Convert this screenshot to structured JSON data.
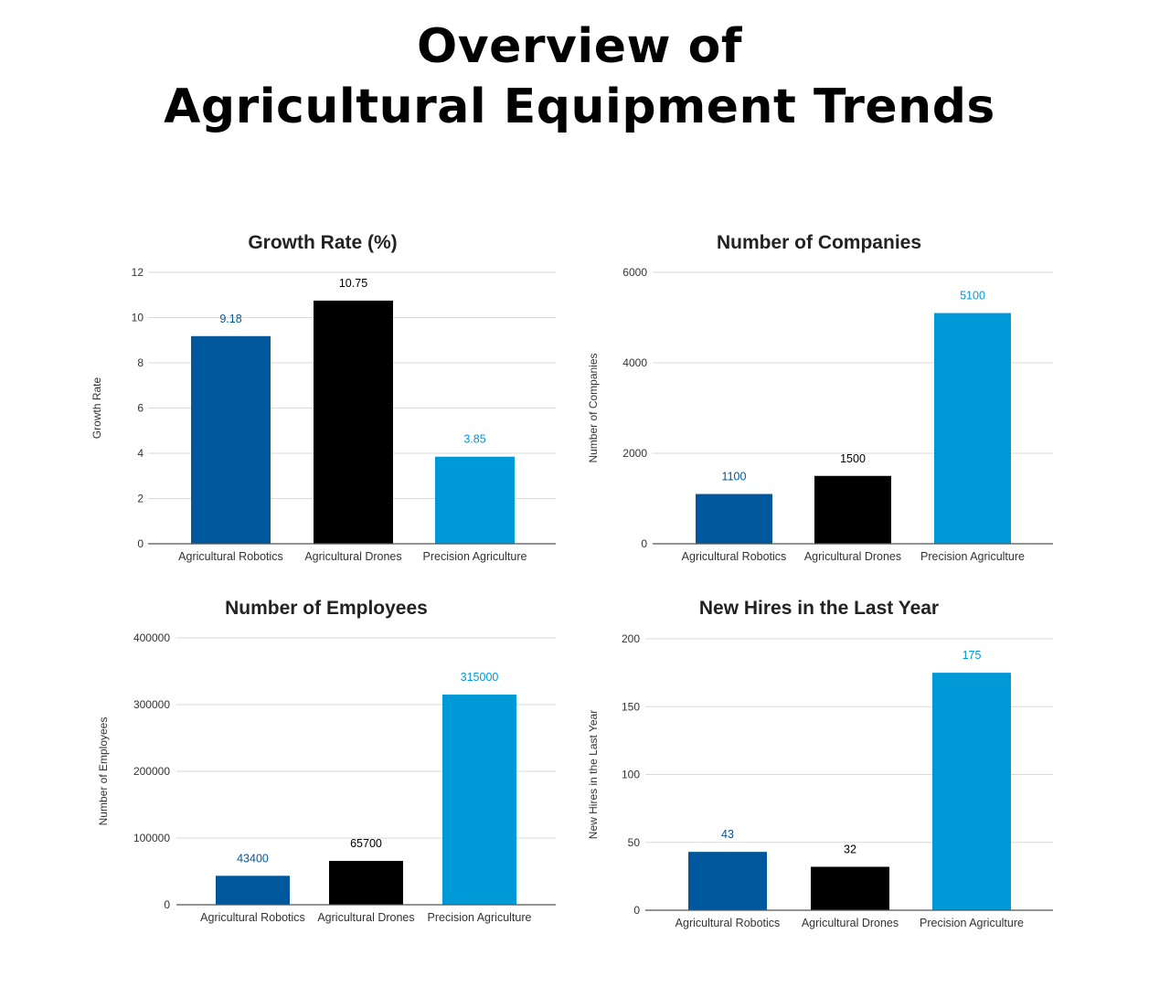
{
  "title_line1": "Overview of",
  "title_line2": "Agricultural Equipment Trends",
  "colors": {
    "Agricultural Robotics": "#01579b",
    "Agricultural Drones": "#000000",
    "Precision Agriculture": "#0099d8",
    "grid": "#d9d9d9",
    "axis": "#555555"
  },
  "chart_data": [
    {
      "type": "bar",
      "title": "Growth Rate (%)",
      "ylabel": "Growth Rate",
      "xlabel": "",
      "categories": [
        "Agricultural Robotics",
        "Agricultural Drones",
        "Precision Agriculture"
      ],
      "values": [
        9.18,
        10.75,
        3.85
      ],
      "labels": [
        "9.18",
        "10.75",
        "3.85"
      ],
      "ylim": [
        0,
        12
      ],
      "yticks": [
        0,
        2,
        4,
        6,
        8,
        10,
        12
      ],
      "grid": true
    },
    {
      "type": "bar",
      "title": "Number of Companies",
      "ylabel": "Number of Companies",
      "xlabel": "",
      "categories": [
        "Agricultural Robotics",
        "Agricultural Drones",
        "Precision Agriculture"
      ],
      "values": [
        1100,
        1500,
        5100
      ],
      "labels": [
        "1100",
        "1500",
        "5100"
      ],
      "ylim": [
        0,
        6000
      ],
      "yticks": [
        0,
        2000,
        4000,
        6000
      ],
      "grid": true
    },
    {
      "type": "bar",
      "title": "Number of Employees",
      "ylabel": "Number of Employees",
      "xlabel": "",
      "categories": [
        "Agricultural Robotics",
        "Agricultural Drones",
        "Precision Agriculture"
      ],
      "values": [
        43400,
        65700,
        315000
      ],
      "labels": [
        "43400",
        "65700",
        "315000"
      ],
      "ylim": [
        0,
        400000
      ],
      "yticks": [
        0,
        100000,
        200000,
        300000,
        400000
      ],
      "grid": true
    },
    {
      "type": "bar",
      "title": "New Hires in the Last Year",
      "ylabel": "New Hires in the Last Year",
      "xlabel": "",
      "categories": [
        "Agricultural Robotics",
        "Agricultural Drones",
        "Precision Agriculture"
      ],
      "values": [
        43,
        32,
        175
      ],
      "labels": [
        "43",
        "32",
        "175"
      ],
      "ylim": [
        0,
        200
      ],
      "yticks": [
        0,
        50,
        100,
        150,
        200
      ],
      "grid": true
    }
  ]
}
